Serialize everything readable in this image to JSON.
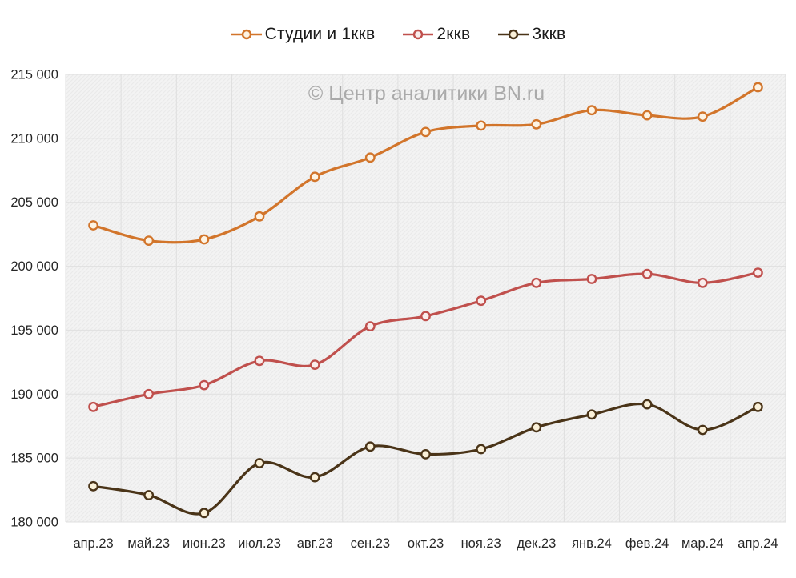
{
  "watermark": {
    "text": "© Центр аналитики BN.ru",
    "color": "#AAAAAA"
  },
  "chart_data": {
    "type": "line",
    "title": "",
    "xlabel": "",
    "ylabel": "",
    "categories": [
      "апр.23",
      "май.23",
      "июн.23",
      "июл.23",
      "авг.23",
      "сен.23",
      "окт.23",
      "ноя.23",
      "дек.23",
      "янв.24",
      "фев.24",
      "мар.24",
      "апр.24"
    ],
    "series": [
      {
        "name": "Студии и 1ккв",
        "color": "#D2752B",
        "marker_fill": "#FDF3E3",
        "values": [
          203200,
          202000,
          202100,
          203900,
          207000,
          208500,
          210500,
          211000,
          211100,
          212200,
          211800,
          211700,
          214000
        ]
      },
      {
        "name": "2ккв",
        "color": "#C0504D",
        "marker_fill": "#F9EDEC",
        "values": [
          189000,
          190000,
          190700,
          192600,
          192300,
          195300,
          196100,
          197300,
          198700,
          199000,
          199400,
          198700,
          199500
        ]
      },
      {
        "name": "3ккв",
        "color": "#4A3418",
        "marker_fill": "#FAF0D8",
        "values": [
          182800,
          182100,
          180700,
          184600,
          183500,
          185900,
          185300,
          185700,
          187400,
          188400,
          189200,
          187200,
          189000
        ]
      }
    ],
    "ylim": [
      180000,
      215000
    ],
    "ytick_step": 5000,
    "ytick_labels": [
      "180 000",
      "185 000",
      "190 000",
      "195 000",
      "200 000",
      "205 000",
      "210 000",
      "215 000"
    ],
    "grid": "on",
    "legend_position": "top",
    "smoothed_lines": true,
    "plot_bg": "#F3F3F3",
    "hatch_color": "#E9E9E9",
    "grid_color": "#DFDFDF",
    "tick_label_color": "#262626"
  }
}
